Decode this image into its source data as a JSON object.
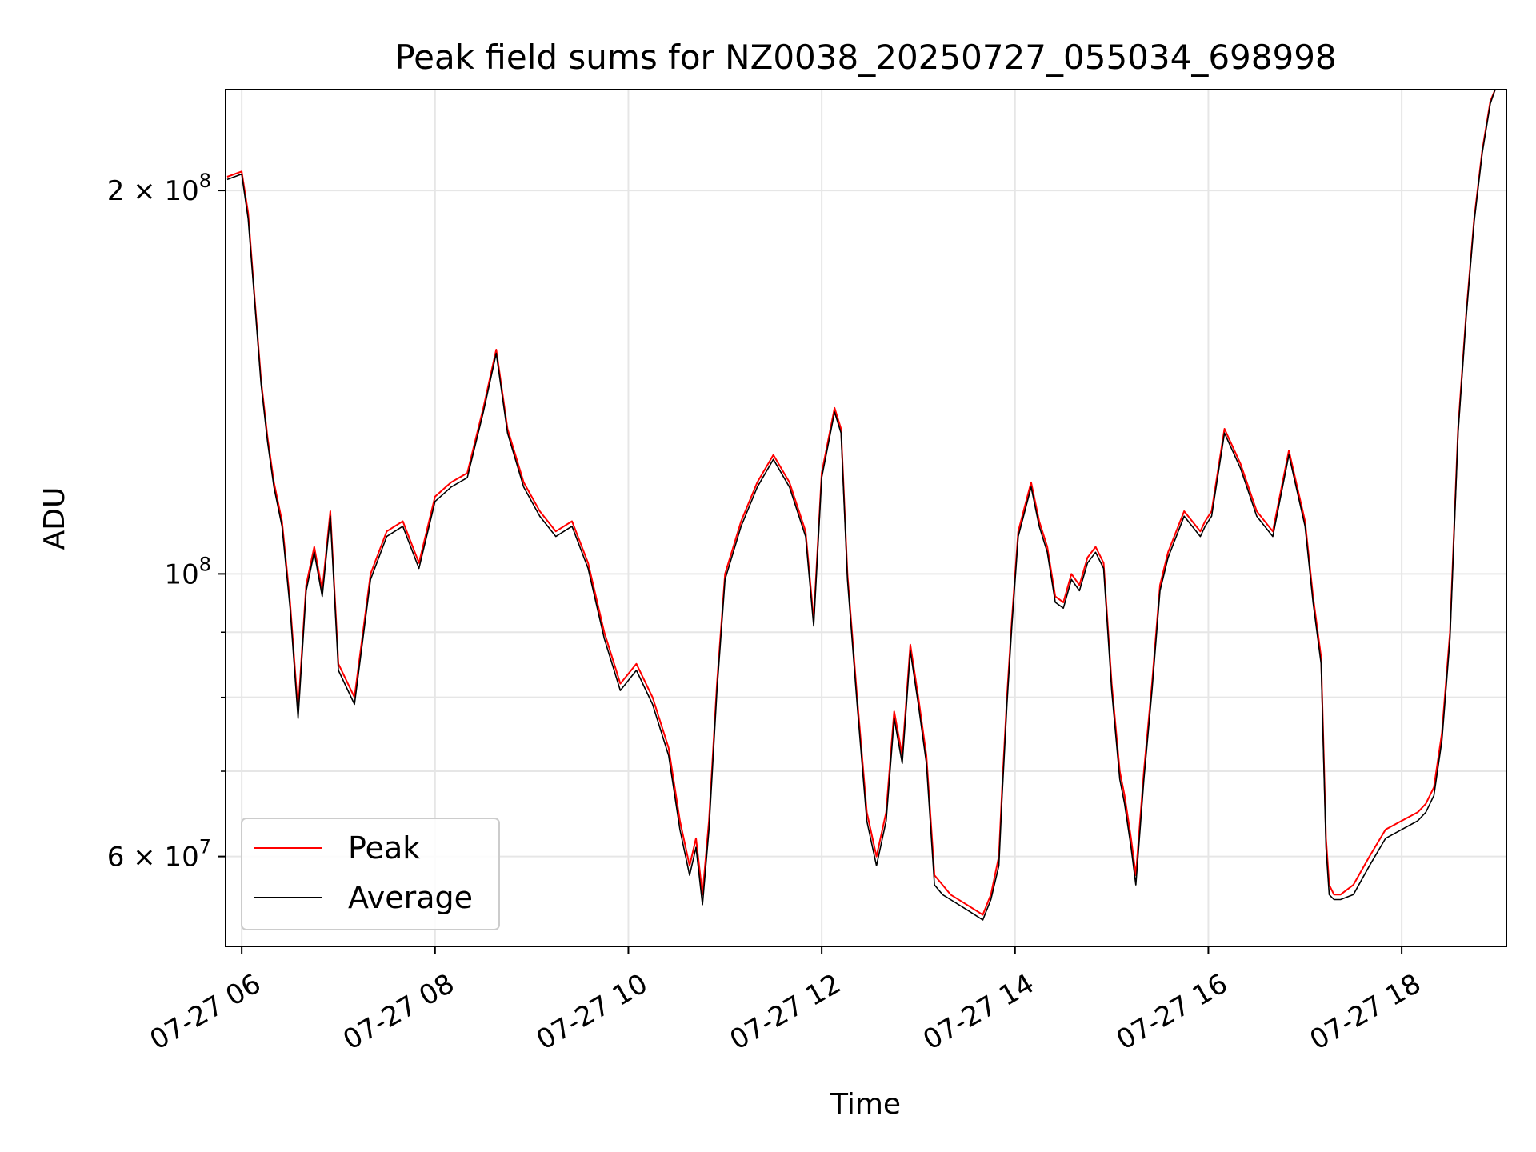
{
  "chart_data": {
    "type": "line",
    "title": "Peak field sums for NZ0038_20250727_055034_698998",
    "xlabel": "Time",
    "ylabel": "ADU",
    "y_scale": "log",
    "grid": true,
    "legend_placement": "lower-left",
    "xlim": [
      "2025-07-27T05:50",
      "2025-07-27T19:05"
    ],
    "ylim": [
      51000000,
      240000000
    ],
    "x_ticks": [
      {
        "value": "2025-07-27T06:00",
        "label": "07-27 06"
      },
      {
        "value": "2025-07-27T08:00",
        "label": "07-27 08"
      },
      {
        "value": "2025-07-27T10:00",
        "label": "07-27 10"
      },
      {
        "value": "2025-07-27T12:00",
        "label": "07-27 12"
      },
      {
        "value": "2025-07-27T14:00",
        "label": "07-27 14"
      },
      {
        "value": "2025-07-27T16:00",
        "label": "07-27 16"
      },
      {
        "value": "2025-07-27T18:00",
        "label": "07-27 18"
      }
    ],
    "y_ticks_major": [
      {
        "value": 60000000,
        "label": "6 × 10⁷",
        "base": "6 × 10",
        "exp": "7"
      },
      {
        "value": 100000000,
        "label": "10⁸",
        "base": "10",
        "exp": "8"
      },
      {
        "value": 200000000,
        "label": "2 × 10⁸",
        "base": "2 × 10",
        "exp": "8"
      }
    ],
    "y_ticks_minor": [
      70000000,
      80000000,
      90000000
    ],
    "colors": {
      "peak": "#ff0000",
      "average": "#000000",
      "grid": "#e6e6e6"
    },
    "series": [
      {
        "name": "Peak",
        "color": "#ff0000",
        "x": [
          "2025-07-27T05:51",
          "2025-07-27T06:00",
          "2025-07-27T06:04",
          "2025-07-27T06:08",
          "2025-07-27T06:12",
          "2025-07-27T06:16",
          "2025-07-27T06:20",
          "2025-07-27T06:25",
          "2025-07-27T06:30",
          "2025-07-27T06:35",
          "2025-07-27T06:40",
          "2025-07-27T06:45",
          "2025-07-27T06:50",
          "2025-07-27T06:55",
          "2025-07-27T07:00",
          "2025-07-27T07:10",
          "2025-07-27T07:20",
          "2025-07-27T07:30",
          "2025-07-27T07:40",
          "2025-07-27T07:50",
          "2025-07-27T08:00",
          "2025-07-27T08:10",
          "2025-07-27T08:20",
          "2025-07-27T08:30",
          "2025-07-27T08:38",
          "2025-07-27T08:45",
          "2025-07-27T08:55",
          "2025-07-27T09:05",
          "2025-07-27T09:15",
          "2025-07-27T09:25",
          "2025-07-27T09:35",
          "2025-07-27T09:45",
          "2025-07-27T09:55",
          "2025-07-27T10:05",
          "2025-07-27T10:15",
          "2025-07-27T10:25",
          "2025-07-27T10:32",
          "2025-07-27T10:38",
          "2025-07-27T10:42",
          "2025-07-27T10:46",
          "2025-07-27T10:50",
          "2025-07-27T10:55",
          "2025-07-27T11:00",
          "2025-07-27T11:10",
          "2025-07-27T11:20",
          "2025-07-27T11:30",
          "2025-07-27T11:40",
          "2025-07-27T11:50",
          "2025-07-27T11:55",
          "2025-07-27T12:00",
          "2025-07-27T12:08",
          "2025-07-27T12:12",
          "2025-07-27T12:16",
          "2025-07-27T12:22",
          "2025-07-27T12:28",
          "2025-07-27T12:34",
          "2025-07-27T12:40",
          "2025-07-27T12:45",
          "2025-07-27T12:50",
          "2025-07-27T12:55",
          "2025-07-27T13:00",
          "2025-07-27T13:05",
          "2025-07-27T13:10",
          "2025-07-27T13:15",
          "2025-07-27T13:20",
          "2025-07-27T13:30",
          "2025-07-27T13:40",
          "2025-07-27T13:45",
          "2025-07-27T13:50",
          "2025-07-27T13:52",
          "2025-07-27T13:55",
          "2025-07-27T13:58",
          "2025-07-27T14:02",
          "2025-07-27T14:10",
          "2025-07-27T14:15",
          "2025-07-27T14:20",
          "2025-07-27T14:25",
          "2025-07-27T14:30",
          "2025-07-27T14:35",
          "2025-07-27T14:40",
          "2025-07-27T14:45",
          "2025-07-27T14:50",
          "2025-07-27T14:55",
          "2025-07-27T15:00",
          "2025-07-27T15:05",
          "2025-07-27T15:08",
          "2025-07-27T15:12",
          "2025-07-27T15:15",
          "2025-07-27T15:20",
          "2025-07-27T15:25",
          "2025-07-27T15:30",
          "2025-07-27T15:35",
          "2025-07-27T15:45",
          "2025-07-27T15:55",
          "2025-07-27T15:58",
          "2025-07-27T16:02",
          "2025-07-27T16:10",
          "2025-07-27T16:20",
          "2025-07-27T16:30",
          "2025-07-27T16:40",
          "2025-07-27T16:50",
          "2025-07-27T17:00",
          "2025-07-27T17:05",
          "2025-07-27T17:10",
          "2025-07-27T17:13",
          "2025-07-27T17:15",
          "2025-07-27T17:18",
          "2025-07-27T17:22",
          "2025-07-27T17:30",
          "2025-07-27T17:40",
          "2025-07-27T17:50",
          "2025-07-27T18:00",
          "2025-07-27T18:10",
          "2025-07-27T18:15",
          "2025-07-27T18:20",
          "2025-07-27T18:25",
          "2025-07-27T18:30",
          "2025-07-27T18:35",
          "2025-07-27T18:40",
          "2025-07-27T18:45",
          "2025-07-27T18:50",
          "2025-07-27T18:55",
          "2025-07-27T18:58"
        ],
        "y": [
          205000000,
          207000000,
          192000000,
          165000000,
          142000000,
          128000000,
          118000000,
          110000000,
          95000000,
          78000000,
          98000000,
          105000000,
          97000000,
          112000000,
          85000000,
          80000000,
          100000000,
          108000000,
          110000000,
          102000000,
          115000000,
          118000000,
          120000000,
          135000000,
          150000000,
          130000000,
          118000000,
          112000000,
          108000000,
          110000000,
          102000000,
          90000000,
          82000000,
          85000000,
          80000000,
          73000000,
          64000000,
          59000000,
          62000000,
          56000000,
          64000000,
          82000000,
          100000000,
          110000000,
          118000000,
          124000000,
          118000000,
          108000000,
          92000000,
          120000000,
          135000000,
          130000000,
          100000000,
          80000000,
          65000000,
          60000000,
          65000000,
          78000000,
          72000000,
          88000000,
          80000000,
          72000000,
          58000000,
          57000000,
          56000000,
          55000000,
          54000000,
          56000000,
          60000000,
          68000000,
          80000000,
          92000000,
          108000000,
          118000000,
          110000000,
          105000000,
          96000000,
          95000000,
          100000000,
          98000000,
          103000000,
          105000000,
          102000000,
          82000000,
          70000000,
          67000000,
          62000000,
          58000000,
          70000000,
          82000000,
          98000000,
          104000000,
          112000000,
          108000000,
          110000000,
          112000000,
          130000000,
          122000000,
          112000000,
          108000000,
          125000000,
          110000000,
          96000000,
          86000000,
          62000000,
          57000000,
          56000000,
          56000000,
          57000000,
          60000000,
          63000000,
          64000000,
          65000000,
          66000000,
          68000000,
          75000000,
          90000000,
          130000000,
          160000000,
          190000000,
          215000000,
          235000000,
          240000000
        ]
      },
      {
        "name": "Average",
        "color": "#000000",
        "x": [
          "2025-07-27T05:51",
          "2025-07-27T06:00",
          "2025-07-27T06:04",
          "2025-07-27T06:08",
          "2025-07-27T06:12",
          "2025-07-27T06:16",
          "2025-07-27T06:20",
          "2025-07-27T06:25",
          "2025-07-27T06:30",
          "2025-07-27T06:35",
          "2025-07-27T06:40",
          "2025-07-27T06:45",
          "2025-07-27T06:50",
          "2025-07-27T06:55",
          "2025-07-27T07:00",
          "2025-07-27T07:10",
          "2025-07-27T07:20",
          "2025-07-27T07:30",
          "2025-07-27T07:40",
          "2025-07-27T07:50",
          "2025-07-27T08:00",
          "2025-07-27T08:10",
          "2025-07-27T08:20",
          "2025-07-27T08:30",
          "2025-07-27T08:38",
          "2025-07-27T08:45",
          "2025-07-27T08:55",
          "2025-07-27T09:05",
          "2025-07-27T09:15",
          "2025-07-27T09:25",
          "2025-07-27T09:35",
          "2025-07-27T09:45",
          "2025-07-27T09:55",
          "2025-07-27T10:05",
          "2025-07-27T10:15",
          "2025-07-27T10:25",
          "2025-07-27T10:32",
          "2025-07-27T10:38",
          "2025-07-27T10:42",
          "2025-07-27T10:46",
          "2025-07-27T10:50",
          "2025-07-27T10:55",
          "2025-07-27T11:00",
          "2025-07-27T11:10",
          "2025-07-27T11:20",
          "2025-07-27T11:30",
          "2025-07-27T11:40",
          "2025-07-27T11:50",
          "2025-07-27T11:55",
          "2025-07-27T12:00",
          "2025-07-27T12:08",
          "2025-07-27T12:12",
          "2025-07-27T12:16",
          "2025-07-27T12:22",
          "2025-07-27T12:28",
          "2025-07-27T12:34",
          "2025-07-27T12:40",
          "2025-07-27T12:45",
          "2025-07-27T12:50",
          "2025-07-27T12:55",
          "2025-07-27T13:00",
          "2025-07-27T13:05",
          "2025-07-27T13:10",
          "2025-07-27T13:15",
          "2025-07-27T13:20",
          "2025-07-27T13:30",
          "2025-07-27T13:40",
          "2025-07-27T13:45",
          "2025-07-27T13:50",
          "2025-07-27T13:52",
          "2025-07-27T13:55",
          "2025-07-27T13:58",
          "2025-07-27T14:02",
          "2025-07-27T14:10",
          "2025-07-27T14:15",
          "2025-07-27T14:20",
          "2025-07-27T14:25",
          "2025-07-27T14:30",
          "2025-07-27T14:35",
          "2025-07-27T14:40",
          "2025-07-27T14:45",
          "2025-07-27T14:50",
          "2025-07-27T14:55",
          "2025-07-27T15:00",
          "2025-07-27T15:05",
          "2025-07-27T15:08",
          "2025-07-27T15:12",
          "2025-07-27T15:15",
          "2025-07-27T15:20",
          "2025-07-27T15:25",
          "2025-07-27T15:30",
          "2025-07-27T15:35",
          "2025-07-27T15:45",
          "2025-07-27T15:55",
          "2025-07-27T15:58",
          "2025-07-27T16:02",
          "2025-07-27T16:10",
          "2025-07-27T16:20",
          "2025-07-27T16:30",
          "2025-07-27T16:40",
          "2025-07-27T16:50",
          "2025-07-27T17:00",
          "2025-07-27T17:05",
          "2025-07-27T17:10",
          "2025-07-27T17:13",
          "2025-07-27T17:15",
          "2025-07-27T17:18",
          "2025-07-27T17:22",
          "2025-07-27T17:30",
          "2025-07-27T17:40",
          "2025-07-27T17:50",
          "2025-07-27T18:00",
          "2025-07-27T18:10",
          "2025-07-27T18:15",
          "2025-07-27T18:20",
          "2025-07-27T18:25",
          "2025-07-27T18:30",
          "2025-07-27T18:35",
          "2025-07-27T18:40",
          "2025-07-27T18:45",
          "2025-07-27T18:50",
          "2025-07-27T18:55",
          "2025-07-27T18:58"
        ],
        "y": [
          204000000,
          206000000,
          190000000,
          164000000,
          141000000,
          127000000,
          117000000,
          109000000,
          94000000,
          77000000,
          97000000,
          104000000,
          96000000,
          111000000,
          84000000,
          79000000,
          99000000,
          107000000,
          109000000,
          101000000,
          114000000,
          117000000,
          119000000,
          134000000,
          149000000,
          129000000,
          117000000,
          111000000,
          107000000,
          109000000,
          101000000,
          89000000,
          81000000,
          84000000,
          79000000,
          72000000,
          63000000,
          58000000,
          61000000,
          55000000,
          63000000,
          81000000,
          99000000,
          109000000,
          117000000,
          123000000,
          117000000,
          107000000,
          91000000,
          119000000,
          134000000,
          129000000,
          99000000,
          79000000,
          64000000,
          59000000,
          64000000,
          77000000,
          71000000,
          87000000,
          79000000,
          71000000,
          57000000,
          56000000,
          55500000,
          54500000,
          53500000,
          55500000,
          59000000,
          67000000,
          79000000,
          91000000,
          107000000,
          117000000,
          109000000,
          104000000,
          95000000,
          94000000,
          99000000,
          97000000,
          102000000,
          104000000,
          101000000,
          81000000,
          69000000,
          66000000,
          61000000,
          57000000,
          69000000,
          81000000,
          97000000,
          103000000,
          111000000,
          107000000,
          109000000,
          111000000,
          129000000,
          121000000,
          111000000,
          107000000,
          124000000,
          109000000,
          95000000,
          85000000,
          61000000,
          56000000,
          55500000,
          55500000,
          56000000,
          59000000,
          62000000,
          63000000,
          64000000,
          65000000,
          67000000,
          74000000,
          89000000,
          129000000,
          159000000,
          189000000,
          214000000,
          234000000,
          240000000
        ]
      }
    ]
  }
}
